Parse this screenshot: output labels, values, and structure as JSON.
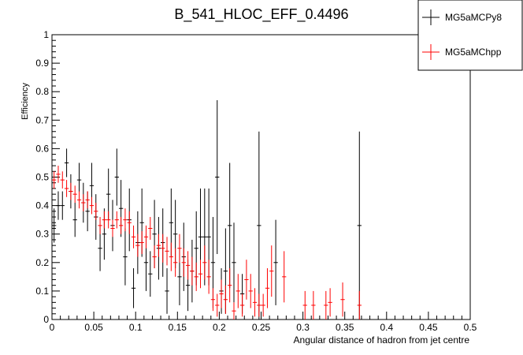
{
  "chart_data": {
    "type": "scatter",
    "title": "B_541_HLOC_EFF_0.4496",
    "xlabel": "Angular distance of hadron from jet centre",
    "ylabel": "Efficiency",
    "xlim": [
      0,
      0.5
    ],
    "ylim": [
      0,
      1
    ],
    "x_ticks": [
      0,
      0.05,
      0.1,
      0.15,
      0.2,
      0.25,
      0.3,
      0.35,
      0.4,
      0.45,
      0.5
    ],
    "x_tick_labels": [
      "0",
      "0.05",
      "0.1",
      "0.15",
      "0.2",
      "0.25",
      "0.3",
      "0.35",
      "0.4",
      "0.45",
      "0.5"
    ],
    "y_ticks": [
      0,
      0.1,
      0.2,
      0.3,
      0.4,
      0.5,
      0.6,
      0.7,
      0.8,
      0.9,
      1
    ],
    "y_tick_labels": [
      "0",
      "0.1",
      "0.2",
      "0.3",
      "0.4",
      "0.5",
      "0.6",
      "0.7",
      "0.8",
      "0.9",
      "1"
    ],
    "legend": {
      "placement": "top-right",
      "entries": [
        {
          "name": "MG5aMCPy8",
          "color": "#000000"
        },
        {
          "name": "MG5aMChpp",
          "color": "#ff0000"
        }
      ]
    },
    "series": [
      {
        "name": "MG5aMCPy8",
        "color": "#000000",
        "points": [
          {
            "x": 0.0025,
            "y": 0.33,
            "err": 0.06
          },
          {
            "x": 0.0075,
            "y": 0.4,
            "err": 0.05
          },
          {
            "x": 0.0125,
            "y": 0.4,
            "err": 0.05
          },
          {
            "x": 0.0175,
            "y": 0.55,
            "err": 0.05
          },
          {
            "x": 0.0225,
            "y": 0.45,
            "err": 0.06
          },
          {
            "x": 0.0275,
            "y": 0.35,
            "err": 0.06
          },
          {
            "x": 0.0325,
            "y": 0.49,
            "err": 0.06
          },
          {
            "x": 0.0375,
            "y": 0.41,
            "err": 0.07
          },
          {
            "x": 0.0425,
            "y": 0.38,
            "err": 0.07
          },
          {
            "x": 0.0475,
            "y": 0.47,
            "err": 0.08
          },
          {
            "x": 0.0525,
            "y": 0.36,
            "err": 0.08
          },
          {
            "x": 0.0575,
            "y": 0.25,
            "err": 0.08
          },
          {
            "x": 0.0625,
            "y": 0.3,
            "err": 0.09
          },
          {
            "x": 0.0675,
            "y": 0.44,
            "err": 0.09
          },
          {
            "x": 0.0725,
            "y": 0.33,
            "err": 0.09
          },
          {
            "x": 0.0775,
            "y": 0.5,
            "err": 0.1
          },
          {
            "x": 0.0825,
            "y": 0.39,
            "err": 0.1
          },
          {
            "x": 0.0875,
            "y": 0.22,
            "err": 0.1
          },
          {
            "x": 0.0925,
            "y": 0.35,
            "err": 0.11
          },
          {
            "x": 0.0975,
            "y": 0.11,
            "err": 0.07
          },
          {
            "x": 0.1025,
            "y": 0.27,
            "err": 0.11
          },
          {
            "x": 0.1075,
            "y": 0.34,
            "err": 0.12
          },
          {
            "x": 0.1125,
            "y": 0.2,
            "err": 0.1
          },
          {
            "x": 0.1175,
            "y": 0.16,
            "err": 0.08
          },
          {
            "x": 0.1225,
            "y": 0.3,
            "err": 0.12
          },
          {
            "x": 0.1275,
            "y": 0.25,
            "err": 0.11
          },
          {
            "x": 0.1325,
            "y": 0.27,
            "err": 0.12
          },
          {
            "x": 0.1375,
            "y": 0.1,
            "err": 0.08
          },
          {
            "x": 0.1425,
            "y": 0.34,
            "err": 0.12
          },
          {
            "x": 0.1475,
            "y": 0.3,
            "err": 0.12
          },
          {
            "x": 0.1525,
            "y": 0.15,
            "err": 0.1
          },
          {
            "x": 0.1575,
            "y": 0.22,
            "err": 0.12
          },
          {
            "x": 0.1625,
            "y": 0.12,
            "err": 0.09
          },
          {
            "x": 0.1675,
            "y": 0.17,
            "err": 0.11
          },
          {
            "x": 0.1725,
            "y": 0.25,
            "err": 0.13
          },
          {
            "x": 0.1775,
            "y": 0.29,
            "err": 0.17
          },
          {
            "x": 0.1825,
            "y": 0.29,
            "err": 0.17
          },
          {
            "x": 0.1875,
            "y": 0.29,
            "err": 0.17
          },
          {
            "x": 0.1925,
            "y": 0.2,
            "err": 0.16
          },
          {
            "x": 0.1975,
            "y": 0.5,
            "err": 0.27
          },
          {
            "x": 0.2025,
            "y": 0.1,
            "err": 0.08
          },
          {
            "x": 0.2075,
            "y": 0.17,
            "err": 0.15
          },
          {
            "x": 0.2125,
            "y": 0.33,
            "err": 0.22
          },
          {
            "x": 0.2175,
            "y": 0.2,
            "err": 0.14
          },
          {
            "x": 0.2275,
            "y": 0.09,
            "err": 0.07
          },
          {
            "x": 0.2475,
            "y": 0.33,
            "err": 0.33
          },
          {
            "x": 0.2675,
            "y": 0.2,
            "err": 0.15
          },
          {
            "x": 0.3675,
            "y": 0.33,
            "err": 0.33
          }
        ]
      },
      {
        "name": "MG5aMChpp",
        "color": "#ff0000",
        "points": [
          {
            "x": 0.0025,
            "y": 0.49,
            "err": 0.03
          },
          {
            "x": 0.0075,
            "y": 0.51,
            "err": 0.03
          },
          {
            "x": 0.0125,
            "y": 0.49,
            "err": 0.03
          },
          {
            "x": 0.0175,
            "y": 0.46,
            "err": 0.03
          },
          {
            "x": 0.0225,
            "y": 0.45,
            "err": 0.03
          },
          {
            "x": 0.0275,
            "y": 0.44,
            "err": 0.03
          },
          {
            "x": 0.0325,
            "y": 0.42,
            "err": 0.03
          },
          {
            "x": 0.0375,
            "y": 0.41,
            "err": 0.03
          },
          {
            "x": 0.0425,
            "y": 0.42,
            "err": 0.03
          },
          {
            "x": 0.0475,
            "y": 0.4,
            "err": 0.03
          },
          {
            "x": 0.0525,
            "y": 0.38,
            "err": 0.03
          },
          {
            "x": 0.0575,
            "y": 0.33,
            "err": 0.03
          },
          {
            "x": 0.0625,
            "y": 0.35,
            "err": 0.03
          },
          {
            "x": 0.0675,
            "y": 0.35,
            "err": 0.03
          },
          {
            "x": 0.0725,
            "y": 0.32,
            "err": 0.03
          },
          {
            "x": 0.0775,
            "y": 0.35,
            "err": 0.03
          },
          {
            "x": 0.0825,
            "y": 0.33,
            "err": 0.03
          },
          {
            "x": 0.0875,
            "y": 0.35,
            "err": 0.04
          },
          {
            "x": 0.0925,
            "y": 0.34,
            "err": 0.04
          },
          {
            "x": 0.0975,
            "y": 0.29,
            "err": 0.04
          },
          {
            "x": 0.1025,
            "y": 0.26,
            "err": 0.04
          },
          {
            "x": 0.1075,
            "y": 0.27,
            "err": 0.04
          },
          {
            "x": 0.1125,
            "y": 0.29,
            "err": 0.04
          },
          {
            "x": 0.1175,
            "y": 0.32,
            "err": 0.04
          },
          {
            "x": 0.1225,
            "y": 0.22,
            "err": 0.04
          },
          {
            "x": 0.1275,
            "y": 0.26,
            "err": 0.04
          },
          {
            "x": 0.1325,
            "y": 0.25,
            "err": 0.05
          },
          {
            "x": 0.1375,
            "y": 0.24,
            "err": 0.05
          },
          {
            "x": 0.1425,
            "y": 0.22,
            "err": 0.05
          },
          {
            "x": 0.1475,
            "y": 0.2,
            "err": 0.05
          },
          {
            "x": 0.1525,
            "y": 0.25,
            "err": 0.05
          },
          {
            "x": 0.1575,
            "y": 0.2,
            "err": 0.05
          },
          {
            "x": 0.1625,
            "y": 0.19,
            "err": 0.05
          },
          {
            "x": 0.1675,
            "y": 0.17,
            "err": 0.05
          },
          {
            "x": 0.1725,
            "y": 0.15,
            "err": 0.05
          },
          {
            "x": 0.1775,
            "y": 0.16,
            "err": 0.05
          },
          {
            "x": 0.1825,
            "y": 0.2,
            "err": 0.06
          },
          {
            "x": 0.1875,
            "y": 0.15,
            "err": 0.06
          },
          {
            "x": 0.1925,
            "y": 0.07,
            "err": 0.04
          },
          {
            "x": 0.1975,
            "y": 0.05,
            "err": 0.04
          },
          {
            "x": 0.2025,
            "y": 0.09,
            "err": 0.05
          },
          {
            "x": 0.2075,
            "y": 0.07,
            "err": 0.05
          },
          {
            "x": 0.2125,
            "y": 0.12,
            "err": 0.06
          },
          {
            "x": 0.2175,
            "y": 0.03,
            "err": 0.03
          },
          {
            "x": 0.2225,
            "y": 0.1,
            "err": 0.06
          },
          {
            "x": 0.2275,
            "y": 0.05,
            "err": 0.04
          },
          {
            "x": 0.2325,
            "y": 0.14,
            "err": 0.07
          },
          {
            "x": 0.2375,
            "y": 0.1,
            "err": 0.06
          },
          {
            "x": 0.2425,
            "y": 0.06,
            "err": 0.05
          },
          {
            "x": 0.2475,
            "y": 0.05,
            "err": 0.04
          },
          {
            "x": 0.2525,
            "y": 0.05,
            "err": 0.04
          },
          {
            "x": 0.2575,
            "y": 0.11,
            "err": 0.07
          },
          {
            "x": 0.2625,
            "y": 0.17,
            "err": 0.09
          },
          {
            "x": 0.2775,
            "y": 0.15,
            "err": 0.09
          },
          {
            "x": 0.3025,
            "y": 0.05,
            "err": 0.05
          },
          {
            "x": 0.3125,
            "y": 0.05,
            "err": 0.05
          },
          {
            "x": 0.3275,
            "y": 0.05,
            "err": 0.05
          },
          {
            "x": 0.3325,
            "y": 0.06,
            "err": 0.05
          },
          {
            "x": 0.3475,
            "y": 0.07,
            "err": 0.06
          },
          {
            "x": 0.3675,
            "y": 0.05,
            "err": 0.05
          }
        ]
      }
    ]
  }
}
